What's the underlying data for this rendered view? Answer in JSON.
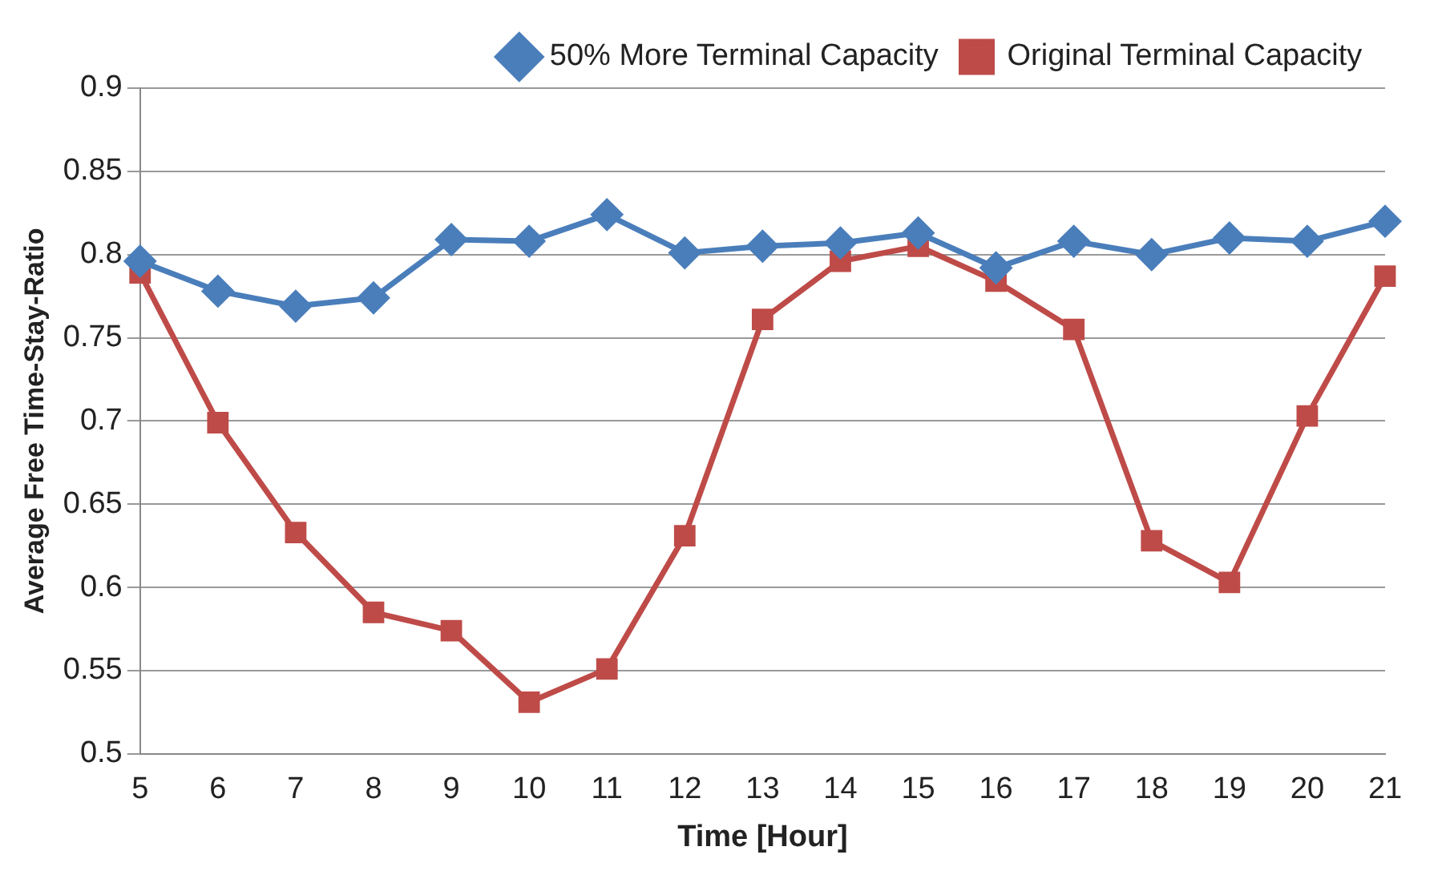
{
  "chart_data": {
    "type": "line",
    "xlabel": "Time [Hour]",
    "ylabel": "Average Free Time-Stay-Ratio",
    "x": [
      5,
      6,
      7,
      8,
      9,
      10,
      11,
      12,
      13,
      14,
      15,
      16,
      17,
      18,
      19,
      20,
      21
    ],
    "series": [
      {
        "name": "50% More Terminal Capacity",
        "color": "#4a7ebb",
        "marker": "diamond",
        "values": [
          0.796,
          0.778,
          0.769,
          0.774,
          0.809,
          0.808,
          0.824,
          0.801,
          0.805,
          0.807,
          0.813,
          0.792,
          0.808,
          0.8,
          0.81,
          0.808,
          0.82
        ]
      },
      {
        "name": "Original Terminal Capacity",
        "color": "#be4b48",
        "marker": "square",
        "values": [
          0.789,
          0.699,
          0.633,
          0.585,
          0.574,
          0.531,
          0.551,
          0.631,
          0.761,
          0.796,
          0.805,
          0.784,
          0.755,
          0.628,
          0.603,
          0.703,
          0.787
        ]
      }
    ],
    "xlim": [
      5,
      21
    ],
    "xticks": [
      5,
      6,
      7,
      8,
      9,
      10,
      11,
      12,
      13,
      14,
      15,
      16,
      17,
      18,
      19,
      20,
      21
    ],
    "ylim": [
      0.5,
      0.9
    ],
    "yticks": [
      0.5,
      0.55,
      0.6,
      0.65,
      0.7,
      0.75,
      0.8,
      0.85,
      0.9
    ],
    "grid": "y",
    "legend": "top right",
    "line_style": "solid"
  }
}
